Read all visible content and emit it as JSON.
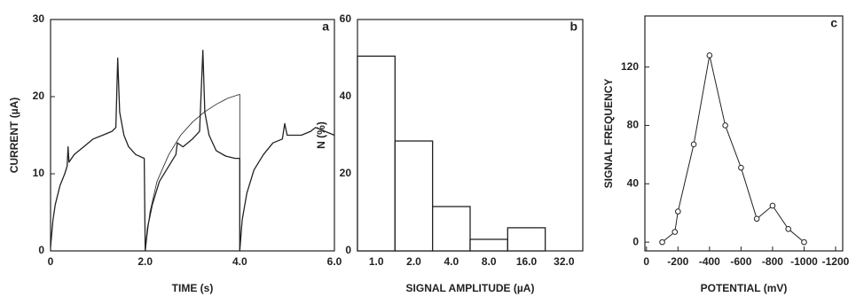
{
  "chart_data": [
    {
      "type": "line",
      "label": "a",
      "xlabel": "TIME (s)",
      "ylabel": "CURRENT (µA)",
      "xlim": [
        0,
        6
      ],
      "ylim": [
        0,
        30
      ],
      "xticks": [
        0,
        {
          "value": 2,
          "label": "2.0"
        },
        {
          "value": 4,
          "label": "4.0"
        },
        {
          "value": 6,
          "label": "6.0"
        }
      ],
      "yticks": [
        0,
        10,
        20,
        30
      ],
      "series": [
        {
          "color": "#222222",
          "width": 1.3,
          "x": [
            0,
            0.05,
            0.1,
            0.2,
            0.3,
            0.35,
            0.37,
            0.39,
            0.5,
            0.7,
            0.9,
            1.1,
            1.3,
            1.38,
            1.42,
            1.46,
            1.55,
            1.65,
            1.8,
            1.98,
            2.0,
            2.05,
            2.15,
            2.3,
            2.5,
            2.65,
            2.68,
            2.8,
            3.0,
            3.15,
            3.22,
            3.26,
            3.35,
            3.5,
            3.7,
            3.9,
            4.0,
            4.0,
            4.05,
            4.15,
            4.3,
            4.5,
            4.7,
            4.9,
            4.95,
            5.0,
            5.3,
            5.5,
            5.6,
            5.8,
            6.0
          ],
          "values": [
            0.5,
            4,
            6,
            8.5,
            10,
            11,
            13.5,
            11.5,
            12.5,
            13.5,
            14.5,
            15,
            15.5,
            16,
            25,
            18,
            15,
            13.5,
            12.5,
            12,
            0,
            3,
            6,
            9,
            11,
            12.5,
            14,
            13.5,
            14.5,
            15.5,
            26,
            18,
            15,
            13,
            12.3,
            12,
            12,
            0,
            4,
            7.5,
            10.5,
            12.5,
            14,
            14.5,
            16.5,
            15,
            15,
            15.5,
            16,
            15.5,
            15
          ]
        },
        {
          "color": "#222222",
          "width": 0.8,
          "x": [
            2.0,
            2.1,
            2.25,
            2.5,
            2.75,
            3.0,
            3.25,
            3.5,
            3.75,
            4.0,
            4.0
          ],
          "values": [
            0,
            5,
            9,
            12.5,
            15,
            16.7,
            18,
            19,
            19.8,
            20.3,
            0
          ]
        }
      ]
    },
    {
      "type": "bar",
      "label": "b",
      "xlabel": "SIGNAL AMPLITUDE (µA)",
      "ylabel": "N (%)",
      "categories": [
        "1.0",
        "2.0",
        "4.0",
        "8.0",
        "16.0",
        "32.0"
      ],
      "values": [
        50.5,
        28.5,
        11.5,
        3,
        6,
        null
      ],
      "color": "#ffffff",
      "ylim": [
        0,
        60
      ],
      "yticks": [
        0,
        20,
        40,
        60
      ]
    },
    {
      "type": "line",
      "label": "c",
      "xlabel": "POTENTIAL (mV)",
      "ylabel": "SIGNAL FREQUENCY",
      "marker": "circle",
      "xlim": [
        10,
        -1245
      ],
      "ylim": [
        -6,
        155
      ],
      "xticks": [
        0,
        -200,
        -400,
        -600,
        -800,
        -1000,
        -1200
      ],
      "yticks": [
        0,
        40,
        80,
        120
      ],
      "series": [
        {
          "color": "#222222",
          "width": 1,
          "x": [
            -100,
            -180,
            -200,
            -300,
            -400,
            -500,
            -600,
            -700,
            -800,
            -900,
            -1000
          ],
          "values": [
            0,
            7,
            21,
            67,
            128,
            80,
            51,
            16,
            25,
            9,
            0
          ]
        }
      ]
    }
  ]
}
